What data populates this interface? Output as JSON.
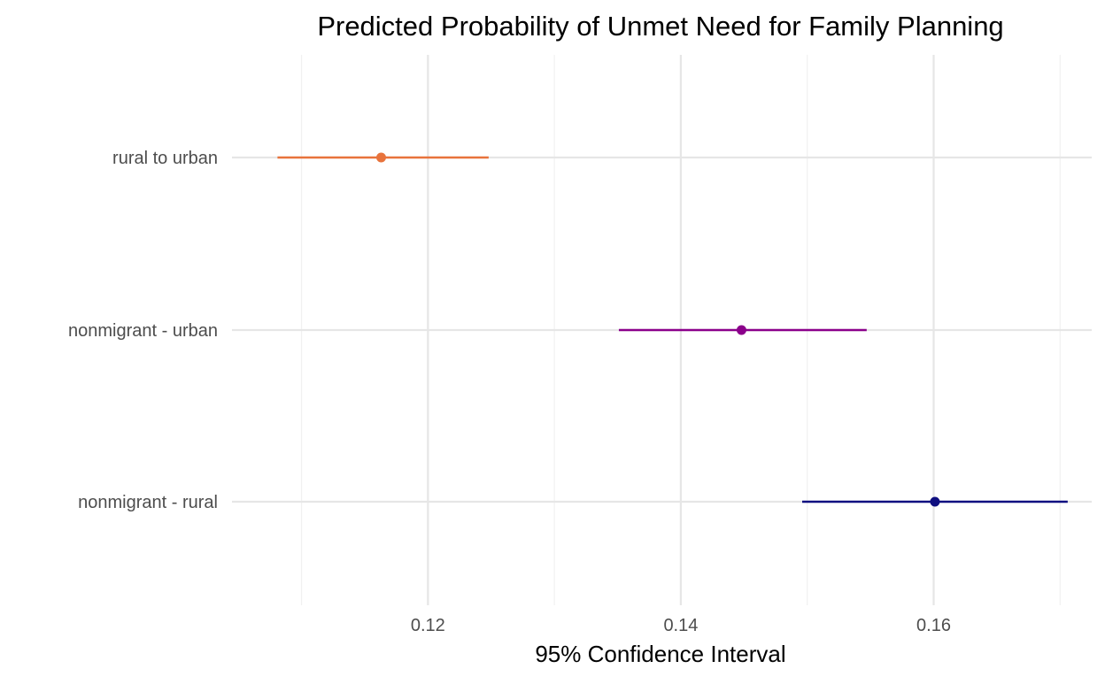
{
  "chart_data": {
    "type": "errorbar",
    "title": "Predicted Probability of Unmet Need for Family Planning",
    "xlabel": "95% Confidence Interval",
    "ylabel": "",
    "xlim": [
      0.1045,
      0.1725
    ],
    "x_ticks": [
      0.12,
      0.14,
      0.16
    ],
    "x_tick_labels": [
      "0.12",
      "0.14",
      "0.16"
    ],
    "x_minor_ticks": [
      0.11,
      0.13,
      0.15,
      0.17
    ],
    "grid": true,
    "legend": "none",
    "categories": [
      "rural to urban",
      "nonmigrant - urban",
      "nonmigrant - rural"
    ],
    "points": [
      {
        "category": "rural to urban",
        "estimate": 0.1163,
        "lower": 0.1081,
        "upper": 0.1248,
        "color": "#E8733C"
      },
      {
        "category": "nonmigrant - urban",
        "estimate": 0.1448,
        "lower": 0.1351,
        "upper": 0.1547,
        "color": "#8B008B"
      },
      {
        "category": "nonmigrant - rural",
        "estimate": 0.1601,
        "lower": 0.1496,
        "upper": 0.1706,
        "color": "#0F0F80"
      }
    ]
  },
  "colors": {
    "grid_major": "#E6E6E6",
    "grid_minor": "#F1F1F1",
    "text_tick": "#4D4D4D",
    "text_title": "#000000"
  }
}
